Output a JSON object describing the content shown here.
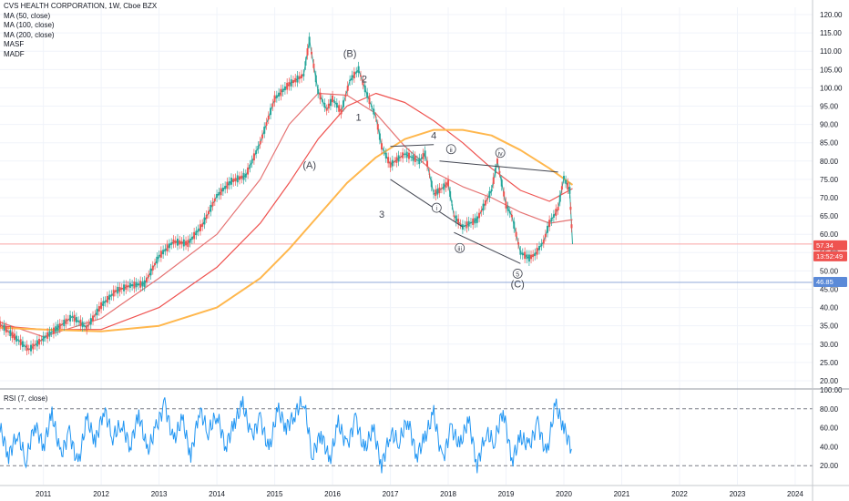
{
  "chart_data": [
    {
      "type": "line",
      "title": "CVS HEALTH CORPORATION, 1W, Cboe BZX",
      "indicators": [
        "MA (50, close)",
        "MA (100, close)",
        "MA (200, close)",
        "MASF",
        "MADF"
      ],
      "x_ticks": [
        "2011",
        "2012",
        "2013",
        "2014",
        "2015",
        "2016",
        "2017",
        "2018",
        "2019",
        "2020",
        "2021",
        "2022",
        "2023",
        "2024"
      ],
      "y_ticks": [
        "120.00",
        "115.00",
        "110.00",
        "105.00",
        "100.00",
        "95.00",
        "90.00",
        "85.00",
        "80.00",
        "75.00",
        "70.00",
        "65.00",
        "60.00",
        "55.00",
        "50.00",
        "45.00",
        "40.00",
        "35.00",
        "30.00",
        "25.00",
        "20.00"
      ],
      "ylim": [
        18,
        122
      ],
      "xlim": [
        2010.25,
        2024.3
      ],
      "series": [
        {
          "name": "price",
          "color": "#26a69a",
          "x": [
            2010.25,
            2010.5,
            2010.75,
            2011.0,
            2011.25,
            2011.5,
            2011.75,
            2012.0,
            2012.25,
            2012.5,
            2012.75,
            2013.0,
            2013.25,
            2013.5,
            2013.75,
            2014.0,
            2014.25,
            2014.5,
            2014.75,
            2015.0,
            2015.25,
            2015.5,
            2015.6,
            2015.75,
            2015.9,
            2016.0,
            2016.15,
            2016.3,
            2016.45,
            2016.6,
            2016.75,
            2016.85,
            2017.0,
            2017.25,
            2017.5,
            2017.6,
            2017.75,
            2017.85,
            2018.0,
            2018.1,
            2018.25,
            2018.5,
            2018.75,
            2018.85,
            2019.0,
            2019.1,
            2019.25,
            2019.4,
            2019.5,
            2019.65,
            2019.75,
            2019.9,
            2020.0,
            2020.1,
            2020.15
          ],
          "y": [
            35.5,
            32.0,
            28.5,
            31.5,
            34.5,
            37.5,
            34.5,
            40.5,
            44.5,
            46.0,
            46.5,
            54.0,
            58.0,
            57.5,
            62.5,
            70.5,
            74.5,
            76.0,
            85.0,
            97.0,
            101.0,
            103.5,
            113.0,
            99.0,
            94.0,
            97.0,
            93.5,
            102.0,
            105.0,
            98.0,
            92.0,
            84.0,
            79.0,
            82.0,
            80.0,
            82.0,
            71.0,
            72.0,
            74.0,
            65.0,
            62.0,
            64.0,
            72.0,
            80.0,
            68.0,
            65.0,
            55.0,
            53.5,
            54.5,
            58.0,
            63.0,
            67.0,
            75.5,
            72.0,
            57.3
          ]
        },
        {
          "name": "MA 50",
          "color": "#e57373",
          "x": [
            2010.25,
            2011.0,
            2012.0,
            2013.0,
            2014.0,
            2014.75,
            2015.25,
            2015.75,
            2016.25,
            2016.75,
            2017.25,
            2017.75,
            2018.25,
            2018.75,
            2019.25,
            2019.75,
            2020.15
          ],
          "y": [
            36.0,
            32.0,
            37.0,
            48.0,
            60.0,
            75.0,
            90.0,
            98.5,
            98.0,
            93.0,
            84.0,
            77.0,
            73.0,
            70.0,
            66.0,
            63.0,
            64.0
          ]
        },
        {
          "name": "MA 100",
          "color": "#ef5350",
          "x": [
            2010.25,
            2011.0,
            2012.0,
            2013.0,
            2014.0,
            2014.75,
            2015.25,
            2015.75,
            2016.25,
            2016.75,
            2017.25,
            2017.75,
            2018.25,
            2018.75,
            2019.25,
            2019.75,
            2020.15
          ],
          "y": [
            35.0,
            34.0,
            34.0,
            40.0,
            51.0,
            63.0,
            74.0,
            86.0,
            95.0,
            98.5,
            96.0,
            91.0,
            85.0,
            78.0,
            72.0,
            69.0,
            72.5
          ]
        },
        {
          "name": "MA 200",
          "color": "#ffb74d",
          "x": [
            2010.25,
            2011.0,
            2012.0,
            2013.0,
            2014.0,
            2014.75,
            2015.25,
            2015.75,
            2016.25,
            2016.75,
            2017.25,
            2017.75,
            2018.25,
            2018.75,
            2019.25,
            2019.75,
            2020.15
          ],
          "y": [
            34.5,
            34.0,
            33.5,
            35.0,
            40.0,
            48.0,
            56.0,
            65.0,
            74.0,
            81.0,
            86.0,
            88.5,
            88.5,
            87.0,
            83.0,
            78.0,
            73.5
          ]
        }
      ],
      "horizontal_lines": [
        {
          "y": 57.34,
          "color": "#f9a5a5"
        },
        {
          "y": 46.85,
          "color": "#90a9d8"
        }
      ],
      "trendlines": [
        {
          "x": [
            2017.0,
            2017.75
          ],
          "y": [
            84.0,
            84.5
          ]
        },
        {
          "x": [
            2017.0,
            2018.25
          ],
          "y": [
            75.0,
            62.0
          ]
        },
        {
          "x": [
            2018.1,
            2019.25
          ],
          "y": [
            60.5,
            52.0
          ]
        },
        {
          "x": [
            2017.85,
            2019.9
          ],
          "y": [
            80.0,
            77.0
          ]
        }
      ],
      "labels": [
        {
          "text": "(A)",
          "x": 2015.6,
          "y": 78.0
        },
        {
          "text": "(B)",
          "x": 2016.3,
          "y": 108.5
        },
        {
          "text": "1",
          "x": 2016.45,
          "y": 91.0
        },
        {
          "text": "2",
          "x": 2016.55,
          "y": 101.5
        },
        {
          "text": "3",
          "x": 2016.85,
          "y": 64.5
        },
        {
          "text": "4",
          "x": 2017.75,
          "y": 86.0
        },
        {
          "text": "ii",
          "x": 2018.05,
          "y": 82.5,
          "circled": true
        },
        {
          "text": "i",
          "x": 2017.8,
          "y": 66.5,
          "circled": true
        },
        {
          "text": "iii",
          "x": 2018.2,
          "y": 55.5,
          "circled": true
        },
        {
          "text": "iv",
          "x": 2018.9,
          "y": 81.5,
          "circled": true
        },
        {
          "text": "5",
          "x": 2019.2,
          "y": 48.5,
          "circled": true
        },
        {
          "text": "(C)",
          "x": 2019.2,
          "y": 45.5
        }
      ],
      "price_badges": [
        {
          "text": "57.34",
          "color": "#ef5350"
        },
        {
          "text": "13:52:49",
          "color": "#ef5350"
        },
        {
          "text": "46.85",
          "color": "#5b8ad8"
        }
      ]
    },
    {
      "type": "line",
      "title": "RSI (7, close)",
      "y_ticks": [
        "100.00",
        "80.00",
        "60.00",
        "40.00",
        "20.00"
      ],
      "ylim": [
        0,
        100
      ],
      "bands": [
        80,
        20
      ],
      "series": [
        {
          "name": "RSI",
          "color": "#2196f3",
          "x": [
            2010.25,
            2010.4,
            2010.55,
            2010.7,
            2010.85,
            2011.0,
            2011.15,
            2011.3,
            2011.45,
            2011.6,
            2011.75,
            2011.9,
            2012.05,
            2012.2,
            2012.35,
            2012.5,
            2012.65,
            2012.8,
            2012.95,
            2013.1,
            2013.25,
            2013.4,
            2013.55,
            2013.7,
            2013.85,
            2014.0,
            2014.15,
            2014.3,
            2014.45,
            2014.6,
            2014.75,
            2014.9,
            2015.05,
            2015.2,
            2015.35,
            2015.5,
            2015.65,
            2015.8,
            2015.95,
            2016.1,
            2016.25,
            2016.4,
            2016.55,
            2016.7,
            2016.85,
            2017.0,
            2017.15,
            2017.3,
            2017.45,
            2017.6,
            2017.75,
            2017.9,
            2018.05,
            2018.2,
            2018.35,
            2018.5,
            2018.65,
            2018.8,
            2018.95,
            2019.1,
            2019.25,
            2019.4,
            2019.55,
            2019.7,
            2019.85,
            2020.0,
            2020.15
          ],
          "y": [
            60,
            30,
            55,
            25,
            65,
            40,
            75,
            30,
            55,
            20,
            70,
            45,
            80,
            50,
            65,
            40,
            75,
            35,
            60,
            85,
            45,
            70,
            30,
            80,
            55,
            75,
            40,
            65,
            85,
            50,
            70,
            35,
            80,
            60,
            75,
            90,
            30,
            55,
            25,
            65,
            40,
            70,
            35,
            60,
            20,
            55,
            45,
            70,
            30,
            50,
            75,
            25,
            60,
            40,
            70,
            20,
            55,
            45,
            80,
            25,
            50,
            40,
            65,
            30,
            85,
            60,
            35
          ]
        }
      ]
    }
  ],
  "legend": {
    "title": "CVS HEALTH CORPORATION, 1W, Cboe BZX",
    "items": [
      "MA (50, close)",
      "MA (100, close)",
      "MA (200, close)",
      "MASF",
      "MADF"
    ]
  },
  "rsi_title": "RSI (7, close)"
}
